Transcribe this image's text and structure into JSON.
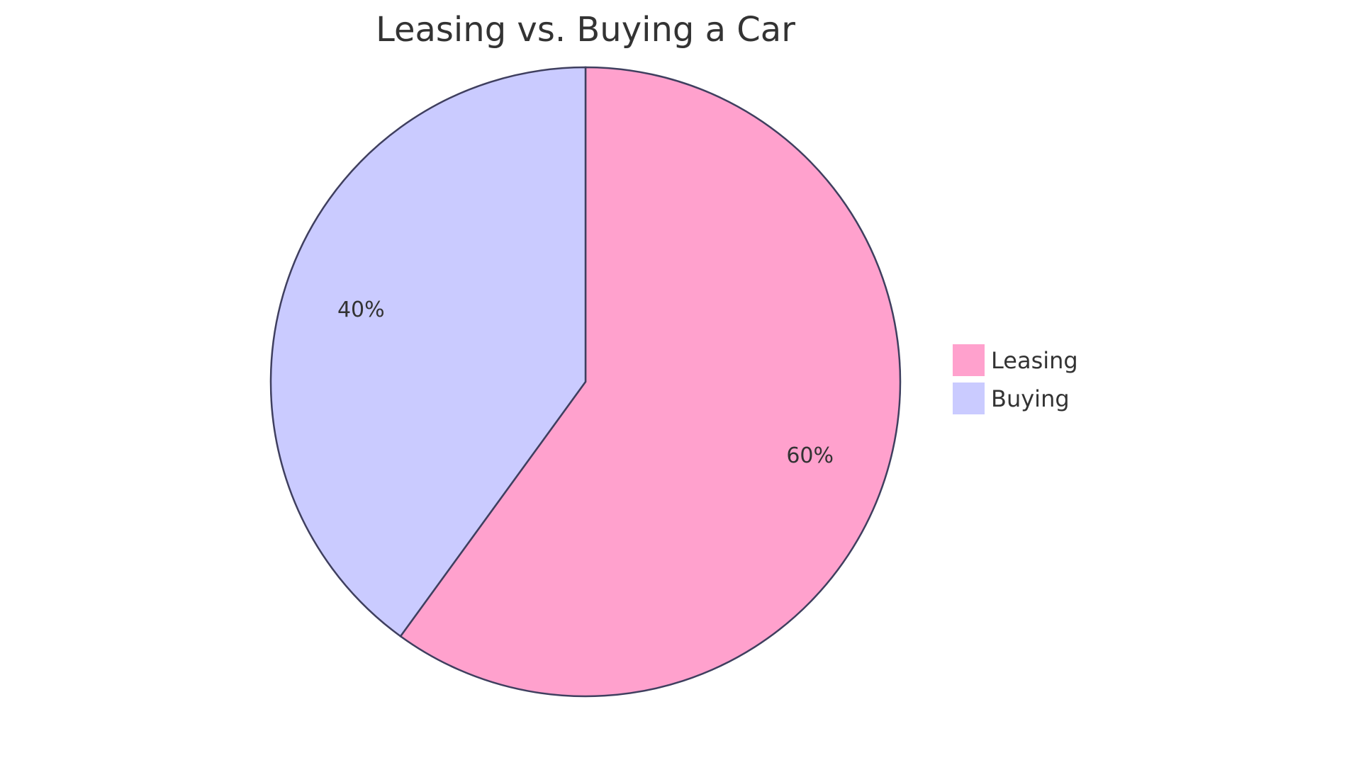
{
  "chart_data": {
    "type": "pie",
    "title": "Leasing vs. Buying a Car",
    "slices": [
      {
        "label": "Leasing",
        "value": 60,
        "display": "60%",
        "color": "#FFA1CD"
      },
      {
        "label": "Buying",
        "value": 40,
        "display": "40%",
        "color": "#CACBFF"
      }
    ],
    "legend_position": "right",
    "stroke_color": "#3F3F5F"
  }
}
